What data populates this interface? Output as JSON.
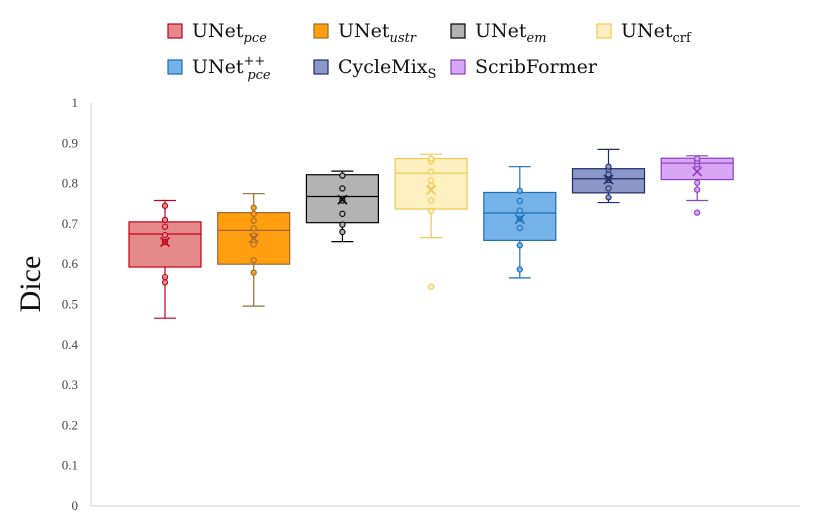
{
  "chart_data": {
    "type": "box",
    "title": "",
    "xlabel": "",
    "ylabel": "Dice",
    "ylim": [
      0,
      1
    ],
    "yticks": [
      "0",
      "0.1",
      "0.2",
      "0.3",
      "0.4",
      "0.5",
      "0.6",
      "0.7",
      "0.8",
      "0.9",
      "1"
    ],
    "grid": false,
    "legend_position": "top",
    "series": [
      {
        "name": "UNet",
        "sub": "pce",
        "sup": "",
        "sub_italic": true,
        "fill": "#e58a8a",
        "stroke": "#c0001a",
        "min": 0.466,
        "q1": 0.593,
        "median": 0.675,
        "q3": 0.705,
        "max": 0.758,
        "mean": 0.655,
        "points": [
          0.555,
          0.568,
          0.655,
          0.672,
          0.693,
          0.71,
          0.745
        ]
      },
      {
        "name": "UNet",
        "sub": "ustr",
        "sup": "",
        "sub_italic": true,
        "fill": "#ff9f0f",
        "stroke": "#9c6a30",
        "min": 0.496,
        "q1": 0.6,
        "median": 0.684,
        "q3": 0.728,
        "max": 0.775,
        "mean": 0.665,
        "points": [
          0.579,
          0.61,
          0.649,
          0.671,
          0.689,
          0.708,
          0.725,
          0.74
        ]
      },
      {
        "name": "UNet",
        "sub": "em",
        "sup": "",
        "sub_italic": true,
        "fill": "#b3b3b3",
        "stroke": "#000000",
        "min": 0.656,
        "q1": 0.703,
        "median": 0.768,
        "q3": 0.822,
        "max": 0.831,
        "mean": 0.76,
        "points": [
          0.68,
          0.698,
          0.725,
          0.758,
          0.788,
          0.82
        ]
      },
      {
        "name": "UNet",
        "sub": "crf",
        "sup": "",
        "sub_italic": false,
        "fill": "#fff0c2",
        "stroke": "#f2c84b",
        "min": 0.666,
        "q1": 0.737,
        "median": 0.826,
        "q3": 0.862,
        "max": 0.873,
        "mean": 0.784,
        "points": [
          0.544,
          0.732,
          0.758,
          0.795,
          0.808,
          0.83,
          0.855,
          0.862
        ]
      },
      {
        "name": "UNet",
        "sub": "pce",
        "sup": "++",
        "sub_italic": true,
        "fill": "#75b2e8",
        "stroke": "#1a6fb5",
        "min": 0.566,
        "q1": 0.659,
        "median": 0.727,
        "q3": 0.778,
        "max": 0.842,
        "mean": 0.712,
        "points": [
          0.587,
          0.647,
          0.69,
          0.713,
          0.733,
          0.757,
          0.782
        ]
      },
      {
        "name": "CycleMix",
        "sub": "S",
        "sup": "",
        "sub_italic": false,
        "fill": "#8b97c9",
        "stroke": "#1f2d66",
        "min": 0.753,
        "q1": 0.777,
        "median": 0.812,
        "q3": 0.837,
        "max": 0.885,
        "mean": 0.81,
        "points": [
          0.766,
          0.788,
          0.809,
          0.823,
          0.835,
          0.842
        ]
      },
      {
        "name": "ScribFormer",
        "sub": "",
        "sup": "",
        "sub_italic": false,
        "fill": "#d9a5f5",
        "stroke": "#8a3fbf",
        "min": 0.758,
        "q1": 0.81,
        "median": 0.851,
        "q3": 0.863,
        "max": 0.869,
        "mean": 0.83,
        "points": [
          0.728,
          0.785,
          0.802,
          0.838,
          0.848,
          0.856,
          0.862
        ]
      }
    ]
  }
}
